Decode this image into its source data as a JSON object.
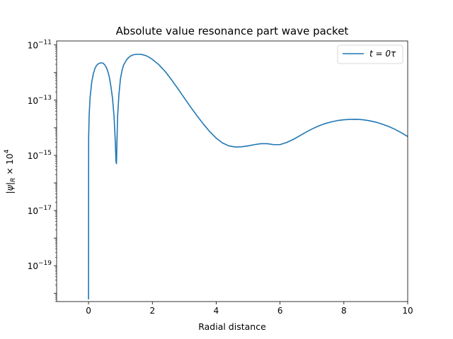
{
  "chart_data": {
    "type": "line",
    "title": "Absolute value resonance part wave packet",
    "xlabel": "Radial distance",
    "ylabel": "|ψ|_R × 10^4",
    "xlim": [
      -1,
      10
    ],
    "ylim": [
      5e-21,
      1.4e-11
    ],
    "yscale": "log",
    "grid": false,
    "legend_position": "top-right",
    "x_ticks": [
      0,
      2,
      4,
      6,
      8,
      10
    ],
    "y_ticks": [
      {
        "value": 1e-11,
        "base": "10",
        "exp": "−11"
      },
      {
        "value": 1e-13,
        "base": "10",
        "exp": "−13"
      },
      {
        "value": 1e-15,
        "base": "10",
        "exp": "−15"
      },
      {
        "value": 1e-17,
        "base": "10",
        "exp": "−17"
      },
      {
        "value": 1e-19,
        "base": "10",
        "exp": "−19"
      }
    ],
    "series": [
      {
        "name": "t = 0τ",
        "color": "#1f77b4",
        "x": [
          0,
          0.003,
          0.02,
          0.05,
          0.1,
          0.15,
          0.2,
          0.25,
          0.3,
          0.35,
          0.4,
          0.45,
          0.5,
          0.55,
          0.6,
          0.65,
          0.7,
          0.75,
          0.8,
          0.84,
          0.86,
          0.875,
          0.89,
          0.91,
          0.95,
          1.0,
          1.05,
          1.1,
          1.2,
          1.3,
          1.4,
          1.5,
          1.6,
          1.7,
          1.8,
          1.9,
          2.0,
          2.2,
          2.4,
          2.6,
          2.8,
          3.0,
          3.2,
          3.4,
          3.6,
          3.8,
          4.0,
          4.2,
          4.4,
          4.6,
          4.8,
          5.0,
          5.2,
          5.4,
          5.6,
          5.8,
          6.0,
          6.2,
          6.4,
          6.6,
          6.8,
          7.0,
          7.2,
          7.4,
          7.6,
          7.8,
          8.0,
          8.2,
          8.4,
          8.6,
          8.8,
          9.0,
          9.2,
          9.4,
          9.6,
          9.8,
          10.0
        ],
        "y": [
          6e-21,
          4e-15,
          3e-14,
          1.3e-13,
          4.5e-13,
          9e-13,
          1.4e-12,
          1.8e-12,
          2.05e-12,
          2.2e-12,
          2.25e-12,
          2.2e-12,
          1.95e-12,
          1.6e-12,
          1.15e-12,
          7e-13,
          3.2e-13,
          1.2e-13,
          2.5e-14,
          3e-15,
          6e-16,
          5e-16,
          3e-15,
          2.5e-14,
          1.5e-13,
          6e-13,
          1.2e-12,
          1.9e-12,
          3e-12,
          3.9e-12,
          4.4e-12,
          4.6e-12,
          4.6e-12,
          4.45e-12,
          4.1e-12,
          3.6e-12,
          3e-12,
          1.95e-12,
          1.1e-12,
          5.5e-13,
          2.6e-13,
          1.2e-13,
          5.6e-14,
          2.7e-14,
          1.35e-14,
          7.2e-15,
          4.2e-15,
          2.8e-15,
          2.2e-15,
          2e-15,
          2.05e-15,
          2.2e-15,
          2.45e-15,
          2.65e-15,
          2.65e-15,
          2.45e-15,
          2.45e-15,
          2.9e-15,
          3.7e-15,
          5e-15,
          6.8e-15,
          9e-15,
          1.15e-14,
          1.4e-14,
          1.63e-14,
          1.82e-14,
          1.95e-14,
          2.01e-14,
          2.02e-14,
          1.95e-14,
          1.8e-14,
          1.6e-14,
          1.35e-14,
          1.12e-14,
          8.8e-15,
          6.6e-15,
          4.8e-15
        ]
      }
    ],
    "legend": {
      "label_text": "t = 0",
      "label_tau": "τ"
    }
  }
}
